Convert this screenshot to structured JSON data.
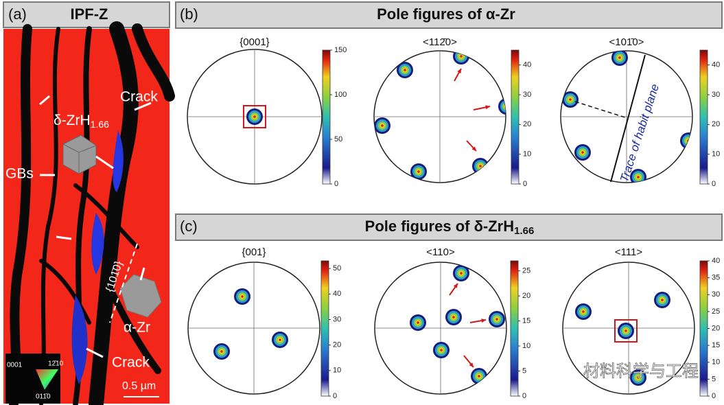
{
  "panel_a": {
    "label": "(a)",
    "title": "IPF-Z",
    "annotations": {
      "crack_top": "Crack",
      "hydride": "δ-ZrH",
      "hydride_sub": "1.66",
      "gbs": "GBs",
      "plane": "{101̄0}",
      "alpha_zr": "α-Zr",
      "crack_bottom": "Crack",
      "scale_bar": "0.5 µm"
    },
    "legend": {
      "top_left": "0001",
      "top_right": "12̄10",
      "bottom": "011̄0"
    }
  },
  "panel_b": {
    "label": "(b)",
    "title": "Pole figures of α-Zr",
    "plots": [
      {
        "title": "{0001}",
        "range": [
          0,
          150
        ],
        "ticks": [
          0,
          50,
          100,
          150
        ]
      },
      {
        "title": "<112̄0>",
        "range": [
          0,
          45
        ],
        "ticks": [
          0,
          10,
          20,
          30,
          40
        ]
      },
      {
        "title": "<101̄0>",
        "range": [
          0,
          45
        ],
        "ticks": [
          0,
          10,
          20,
          30,
          40
        ]
      }
    ],
    "annotation": "Trace of habit plane"
  },
  "panel_c": {
    "label": "(c)",
    "title": "Pole figures of δ-ZrH",
    "title_sub": "1.66",
    "plots": [
      {
        "title": "{001}",
        "range": [
          0,
          53
        ],
        "ticks": [
          0,
          10,
          20,
          30,
          40,
          50
        ]
      },
      {
        "title": "<110>",
        "range": [
          0,
          27
        ],
        "ticks": [
          0,
          5,
          10,
          15,
          20,
          25
        ]
      },
      {
        "title": "<111>",
        "range": [
          0,
          40
        ],
        "ticks": [
          0,
          5,
          10,
          15,
          20,
          25,
          30,
          35,
          40
        ]
      }
    ]
  },
  "watermark": "材料科学与工程"
}
